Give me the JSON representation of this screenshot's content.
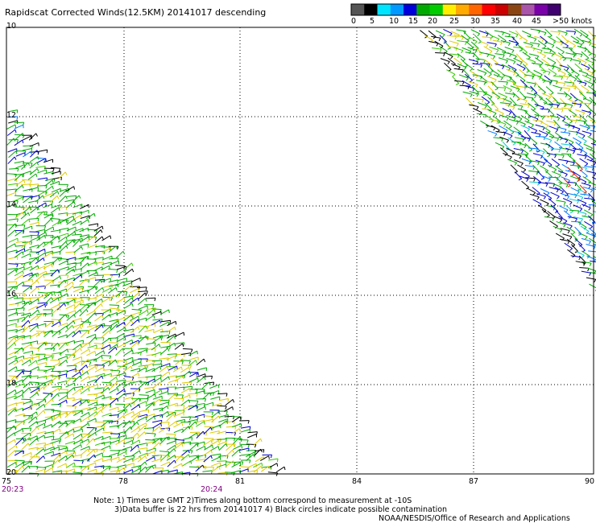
{
  "header": {
    "title": "Rapidscat Corrected Winds(12.5KM) 20141017 descending"
  },
  "legend": {
    "colors": [
      "#555555",
      "#000000",
      "#00e5ff",
      "#0099ff",
      "#0000dd",
      "#00aa00",
      "#00cc00",
      "#ffee00",
      "#ffaa00",
      "#ff6600",
      "#ff0000",
      "#cc0000",
      "#8b4513",
      "#aa55aa",
      "#7a00aa",
      "#400070"
    ],
    "tick_labels": [
      "0",
      "5",
      "10",
      "15",
      "20",
      "25",
      "30",
      "35",
      "40",
      "45",
      ">50 knots"
    ]
  },
  "map": {
    "lat_labels": [
      "10",
      "12",
      "14",
      "16",
      "18",
      "20"
    ],
    "lon_labels": [
      "75",
      "78",
      "81",
      "84",
      "87",
      "90"
    ],
    "time_labels": [
      "20:23",
      "20:24"
    ]
  },
  "notes": {
    "line1": "Note: 1) Times are GMT 2)Times along bottom correspond to measurement at -10S",
    "line2": "3)Data buffer is 22 hrs from 20141017 4) Black circles indicate possible contamination",
    "line3": "NOAA/NESDIS/Office of Research and Applications"
  }
}
